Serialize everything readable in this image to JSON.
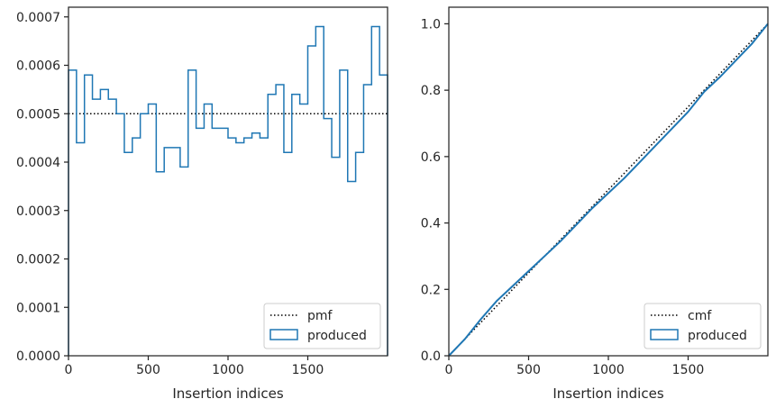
{
  "chart_data": [
    {
      "type": "line",
      "xlabel": "Insertion indices",
      "ylabel": "",
      "xlim": [
        0,
        2000
      ],
      "ylim": [
        0,
        0.00072
      ],
      "xticks": [
        0,
        500,
        1000,
        1500
      ],
      "yticks": [
        0.0,
        0.0001,
        0.0002,
        0.0003,
        0.0004,
        0.0005,
        0.0006,
        0.0007
      ],
      "ytick_labels": [
        "0.0000",
        "0.0001",
        "0.0002",
        "0.0003",
        "0.0004",
        "0.0005",
        "0.0006",
        "0.0007"
      ],
      "grid": false,
      "legend_position": "lower-right",
      "series": [
        {
          "name": "pmf",
          "style": "dotted",
          "color": "#000000",
          "x": [
            0,
            2000
          ],
          "y": [
            0.0005,
            0.0005
          ]
        },
        {
          "name": "produced",
          "style": "step-histogram",
          "color": "#1f77b4",
          "bin_edges": [
            0,
            50,
            100,
            150,
            200,
            250,
            300,
            350,
            400,
            450,
            500,
            550,
            600,
            650,
            700,
            750,
            800,
            850,
            900,
            950,
            1000,
            1050,
            1100,
            1150,
            1200,
            1250,
            1300,
            1350,
            1400,
            1450,
            1500,
            1550,
            1600,
            1650,
            1700,
            1750,
            1800,
            1850,
            1900,
            1950,
            2000
          ],
          "values": [
            0.00059,
            0.00044,
            0.00058,
            0.00053,
            0.00055,
            0.00053,
            0.0005,
            0.00042,
            0.00045,
            0.0005,
            0.00052,
            0.00038,
            0.00043,
            0.00043,
            0.00039,
            0.00059,
            0.00047,
            0.00052,
            0.00047,
            0.00047,
            0.00045,
            0.00044,
            0.00045,
            0.00046,
            0.00045,
            0.00054,
            0.00056,
            0.00042,
            0.00054,
            0.00052,
            0.00064,
            0.00068,
            0.00049,
            0.00041,
            0.00059,
            0.00036,
            0.00042,
            0.00056,
            0.00068,
            0.00058
          ]
        }
      ]
    },
    {
      "type": "line",
      "xlabel": "Insertion indices",
      "ylabel": "",
      "xlim": [
        0,
        2000
      ],
      "ylim": [
        0,
        1.05
      ],
      "xticks": [
        0,
        500,
        1000,
        1500
      ],
      "yticks": [
        0.0,
        0.2,
        0.4,
        0.6,
        0.8,
        1.0
      ],
      "ytick_labels": [
        "0.0",
        "0.2",
        "0.4",
        "0.6",
        "0.8",
        "1.0"
      ],
      "grid": false,
      "legend_position": "lower-right",
      "series": [
        {
          "name": "cmf",
          "style": "dotted",
          "color": "#000000",
          "x": [
            0,
            2000
          ],
          "y": [
            0.0,
            1.0
          ]
        },
        {
          "name": "produced",
          "style": "solid",
          "color": "#1f77b4",
          "x": [
            0,
            100,
            200,
            300,
            400,
            500,
            600,
            700,
            800,
            900,
            1000,
            1100,
            1200,
            1300,
            1400,
            1500,
            1600,
            1700,
            1800,
            1900,
            2000
          ],
          "y": [
            0.0,
            0.05,
            0.11,
            0.165,
            0.21,
            0.255,
            0.3,
            0.345,
            0.395,
            0.445,
            0.49,
            0.535,
            0.585,
            0.635,
            0.685,
            0.735,
            0.795,
            0.84,
            0.89,
            0.94,
            1.0
          ]
        }
      ]
    }
  ]
}
